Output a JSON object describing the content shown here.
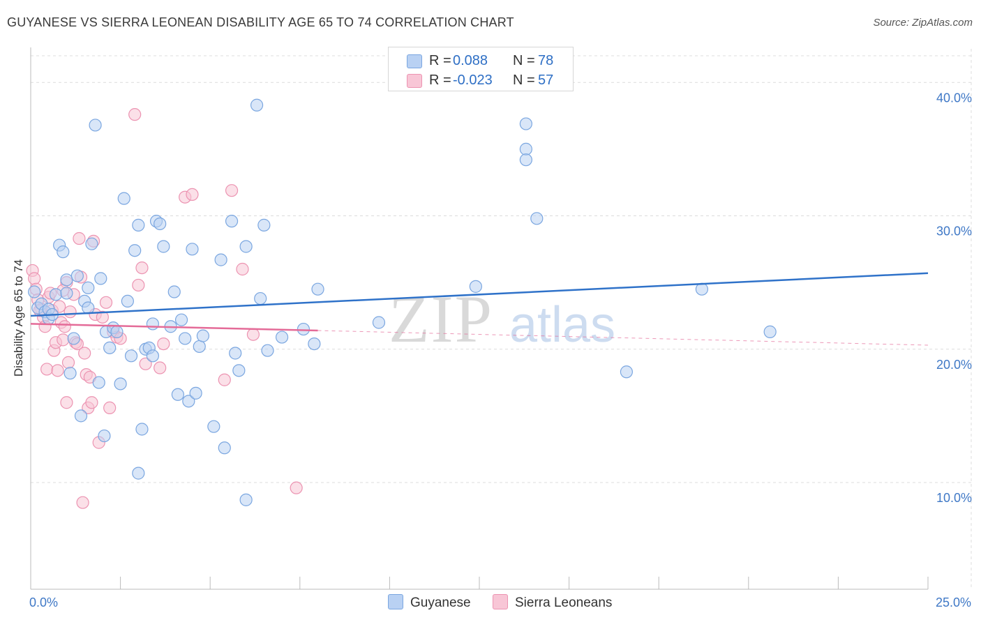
{
  "title": "GUYANESE VS SIERRA LEONEAN DISABILITY AGE 65 TO 74 CORRELATION CHART",
  "source": "Source: ZipAtlas.com",
  "watermark": {
    "zip": "ZIP",
    "atlas": "atlas"
  },
  "colors": {
    "blue_fill": "#b9d1f3",
    "blue_stroke": "#7aa6e0",
    "blue_line": "#2f72c9",
    "pink_fill": "#f8c6d6",
    "pink_stroke": "#ec93b1",
    "pink_line": "#e46b98",
    "axis_text": "#3f78c6",
    "grid": "#dcdcdc"
  },
  "legend": {
    "rows": [
      {
        "r_label": "R =",
        "r_value": "0.088",
        "n_label": "N =",
        "n_value": "78",
        "color": "#b9d1f3",
        "border": "#7aa6e0"
      },
      {
        "r_label": "R =",
        "r_value": "-0.023",
        "n_label": "N =",
        "n_value": "57",
        "color": "#f8c6d6",
        "border": "#ec93b1"
      }
    ]
  },
  "bottom_legend": [
    {
      "label": "Guyanese",
      "color": "#b9d1f3",
      "border": "#7aa6e0"
    },
    {
      "label": "Sierra Leoneans",
      "color": "#f8c6d6",
      "border": "#ec93b1"
    }
  ],
  "chart_data": {
    "type": "scatter",
    "title": "GUYANESE VS SIERRA LEONEAN DISABILITY AGE 65 TO 74 CORRELATION CHART",
    "xlabel": "",
    "ylabel": "Disability Age 65 to 74",
    "xlim": [
      0,
      25
    ],
    "ylim": [
      2,
      42
    ],
    "x_tick_labels": [
      {
        "value": 0,
        "label": "0.0%"
      },
      {
        "value": 25,
        "label": "25.0%"
      }
    ],
    "x_minor_ticks": [
      0,
      2.5,
      5,
      7.5,
      10,
      12.5,
      15,
      17.5,
      20,
      22.5,
      25
    ],
    "y_ticks": [
      {
        "value": 10,
        "label": "10.0%"
      },
      {
        "value": 20,
        "label": "20.0%"
      },
      {
        "value": 30,
        "label": "30.0%"
      },
      {
        "value": 40,
        "label": "40.0%"
      }
    ],
    "grid": true,
    "series": [
      {
        "name": "Guyanese",
        "color": "#b9d1f3",
        "trend": {
          "x0": 0,
          "y0": 22.5,
          "x1": 25,
          "y1": 25.7,
          "dashed_from": null
        },
        "points": [
          [
            0.1,
            24.3
          ],
          [
            0.2,
            23.1
          ],
          [
            0.3,
            23.4
          ],
          [
            0.4,
            22.8
          ],
          [
            0.5,
            22.3
          ],
          [
            0.5,
            23.0
          ],
          [
            0.6,
            22.6
          ],
          [
            0.7,
            24.1
          ],
          [
            0.8,
            27.8
          ],
          [
            0.9,
            27.3
          ],
          [
            1.0,
            25.2
          ],
          [
            1.0,
            24.2
          ],
          [
            1.1,
            18.2
          ],
          [
            1.2,
            20.8
          ],
          [
            1.3,
            25.5
          ],
          [
            1.4,
            15.0
          ],
          [
            1.5,
            23.6
          ],
          [
            1.6,
            24.6
          ],
          [
            1.6,
            23.1
          ],
          [
            1.7,
            27.9
          ],
          [
            1.8,
            36.8
          ],
          [
            1.9,
            17.5
          ],
          [
            1.95,
            25.3
          ],
          [
            2.05,
            13.5
          ],
          [
            2.1,
            21.3
          ],
          [
            2.2,
            20.1
          ],
          [
            2.3,
            21.6
          ],
          [
            2.4,
            21.3
          ],
          [
            2.5,
            17.4
          ],
          [
            2.6,
            31.3
          ],
          [
            2.7,
            23.6
          ],
          [
            2.8,
            19.5
          ],
          [
            2.9,
            27.4
          ],
          [
            3.0,
            29.3
          ],
          [
            3.0,
            10.7
          ],
          [
            3.1,
            14.0
          ],
          [
            3.2,
            20.0
          ],
          [
            3.3,
            20.1
          ],
          [
            3.4,
            19.5
          ],
          [
            3.4,
            21.9
          ],
          [
            3.5,
            29.6
          ],
          [
            3.6,
            29.4
          ],
          [
            3.7,
            27.7
          ],
          [
            3.9,
            21.7
          ],
          [
            4.0,
            24.3
          ],
          [
            4.1,
            16.6
          ],
          [
            4.2,
            22.2
          ],
          [
            4.3,
            20.8
          ],
          [
            4.4,
            16.1
          ],
          [
            4.5,
            27.5
          ],
          [
            4.6,
            16.7
          ],
          [
            4.7,
            20.2
          ],
          [
            4.8,
            21.0
          ],
          [
            5.1,
            14.2
          ],
          [
            5.3,
            26.7
          ],
          [
            5.4,
            12.6
          ],
          [
            5.6,
            29.6
          ],
          [
            5.7,
            19.7
          ],
          [
            5.8,
            18.4
          ],
          [
            6.0,
            27.7
          ],
          [
            6.0,
            8.7
          ],
          [
            6.3,
            38.3
          ],
          [
            6.4,
            23.8
          ],
          [
            6.5,
            29.3
          ],
          [
            6.6,
            19.9
          ],
          [
            7.0,
            20.9
          ],
          [
            7.6,
            21.5
          ],
          [
            7.9,
            20.4
          ],
          [
            8.0,
            24.5
          ],
          [
            9.7,
            22.0
          ],
          [
            12.4,
            24.7
          ],
          [
            13.8,
            36.9
          ],
          [
            13.8,
            35.0
          ],
          [
            13.8,
            34.2
          ],
          [
            14.1,
            29.8
          ],
          [
            16.6,
            18.3
          ],
          [
            18.7,
            24.5
          ],
          [
            20.6,
            21.3
          ]
        ]
      },
      {
        "name": "Sierra Leoneans",
        "color": "#f8c6d6",
        "trend": {
          "x0": 0,
          "y0": 21.9,
          "x1": 8.0,
          "y1": 21.4,
          "x_end": 25,
          "y_end": 20.3
        },
        "points": [
          [
            0.05,
            25.9
          ],
          [
            0.1,
            25.3
          ],
          [
            0.15,
            24.5
          ],
          [
            0.2,
            23.7
          ],
          [
            0.3,
            23.0
          ],
          [
            0.35,
            22.4
          ],
          [
            0.4,
            21.7
          ],
          [
            0.45,
            18.5
          ],
          [
            0.5,
            23.9
          ],
          [
            0.55,
            24.2
          ],
          [
            0.6,
            22.9
          ],
          [
            0.65,
            19.9
          ],
          [
            0.7,
            20.5
          ],
          [
            0.75,
            18.4
          ],
          [
            0.8,
            23.2
          ],
          [
            0.85,
            22.0
          ],
          [
            0.9,
            20.7
          ],
          [
            0.95,
            21.7
          ],
          [
            1.0,
            25.0
          ],
          [
            1.0,
            16.0
          ],
          [
            1.05,
            19.0
          ],
          [
            1.1,
            22.8
          ],
          [
            1.2,
            24.1
          ],
          [
            1.25,
            20.5
          ],
          [
            1.3,
            20.4
          ],
          [
            1.35,
            28.3
          ],
          [
            1.4,
            25.4
          ],
          [
            1.45,
            8.5
          ],
          [
            1.5,
            19.7
          ],
          [
            1.55,
            18.1
          ],
          [
            1.6,
            15.6
          ],
          [
            1.65,
            17.9
          ],
          [
            1.7,
            16.0
          ],
          [
            1.75,
            28.1
          ],
          [
            1.8,
            22.6
          ],
          [
            1.9,
            13.0
          ],
          [
            2.0,
            22.4
          ],
          [
            2.1,
            23.5
          ],
          [
            2.2,
            15.6
          ],
          [
            2.3,
            21.3
          ],
          [
            2.4,
            20.9
          ],
          [
            2.5,
            20.8
          ],
          [
            2.9,
            37.6
          ],
          [
            3.0,
            24.8
          ],
          [
            3.1,
            26.1
          ],
          [
            3.2,
            18.9
          ],
          [
            3.6,
            18.6
          ],
          [
            3.7,
            20.4
          ],
          [
            4.3,
            31.4
          ],
          [
            4.5,
            31.6
          ],
          [
            5.4,
            17.7
          ],
          [
            5.6,
            31.9
          ],
          [
            5.9,
            26.0
          ],
          [
            6.2,
            21.1
          ],
          [
            7.4,
            9.6
          ],
          [
            0.25,
            22.9
          ],
          [
            0.9,
            24.4
          ]
        ]
      }
    ]
  }
}
